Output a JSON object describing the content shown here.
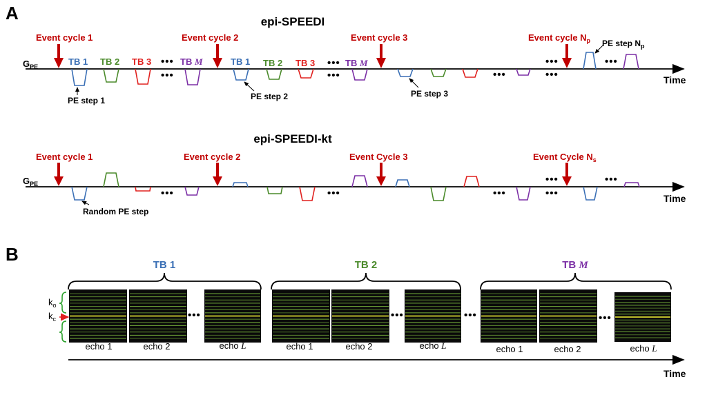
{
  "panels": {
    "a": "A",
    "b": "B"
  },
  "colors": {
    "event": "#c00000",
    "tb1": "#3a6fb5",
    "tb2": "#4a8a2a",
    "tb3": "#e0201e",
    "tbM": "#7b2fa5",
    "green_line": "#7fbf3f",
    "yellow_line": "#d8d830",
    "k_bracket": "#2aa02a",
    "k_arrow": "#e02020"
  },
  "speedi": {
    "title": "epi-SPEEDI",
    "axis_label": "G",
    "axis_sub": "PE",
    "time_label": "Time",
    "events": [
      {
        "label": "Event cycle 1",
        "sub": ""
      },
      {
        "label": "Event cycle 2",
        "sub": ""
      },
      {
        "label": "Event cycle 3",
        "sub": ""
      },
      {
        "label": "Event cycle N",
        "sub": "p"
      }
    ],
    "tb_labels_1": [
      "TB 1",
      "TB 2",
      "TB 3"
    ],
    "tb_labels_2": [
      "TB 1",
      "TB 2",
      "TB 3"
    ],
    "tbM_prefix": "TB",
    "tbM_var": "M",
    "pe_steps": [
      "PE step 1",
      "PE step 2",
      "PE step 3"
    ],
    "pe_step_np": "PE step N",
    "pe_step_np_sub": "p",
    "dots": "•••"
  },
  "speedikt": {
    "title": "epi-SPEEDI-kt",
    "axis_label": "G",
    "axis_sub": "PE",
    "time_label": "Time",
    "events": [
      {
        "label": "Event cycle 1",
        "sub": ""
      },
      {
        "label": "Event cycle 2",
        "sub": ""
      },
      {
        "label": "Event Cycle 3",
        "sub": ""
      },
      {
        "label": "Event Cycle N",
        "sub": "s"
      }
    ],
    "random_pe": "Random PE step",
    "dots": "•••"
  },
  "panelB": {
    "groups": [
      {
        "tb_prefix": "TB",
        "tb_num": "1",
        "tb_var": "",
        "echoes": [
          "echo 1",
          "echo 2"
        ],
        "echo_last_prefix": "echo",
        "echo_last_var": "L"
      },
      {
        "tb_prefix": "TB",
        "tb_num": "2",
        "tb_var": "",
        "echoes": [
          "echo 1",
          "echo 2"
        ],
        "echo_last_prefix": "echo",
        "echo_last_var": "L"
      },
      {
        "tb_prefix": "TB",
        "tb_num": "",
        "tb_var": "M",
        "echoes": [
          "echo 1",
          "echo 2"
        ],
        "echo_last_prefix": "echo",
        "echo_last_var": "L"
      }
    ],
    "k_outer": "k",
    "k_outer_sub": "o",
    "k_center": "k",
    "k_center_sub": "c",
    "dots": "•••",
    "time_label": "Time"
  }
}
